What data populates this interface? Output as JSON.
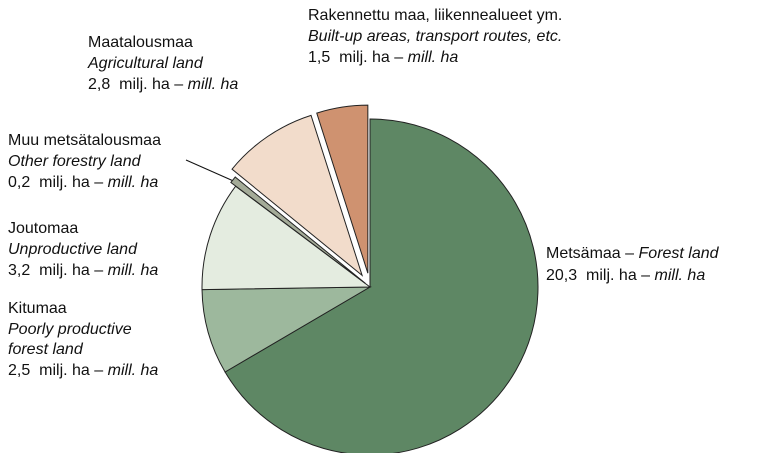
{
  "chart_data": {
    "type": "pie",
    "categories": [
      "Metsämaa",
      "Kitumaa",
      "Joutomaa",
      "Muu metsätalousmaa",
      "Maatalousmaa",
      "Rakennettu maa, liikennealueet ym."
    ],
    "categories_en": [
      "Forest land",
      "Poorly productive forest land",
      "Unproductive land",
      "Other forestry land",
      "Agricultural land",
      "Built-up areas, transport routes, etc."
    ],
    "values": [
      20.3,
      2.5,
      3.2,
      0.2,
      2.8,
      1.5
    ],
    "value_labels": [
      "20,3",
      "2,5",
      "3,2",
      "0,2",
      "2,8",
      "1,5"
    ],
    "unit_fi": "milj. ha",
    "unit_en": "mill. ha",
    "separator": "–",
    "colors": [
      "#5e8764",
      "#9db89d",
      "#e4ece0",
      "#a4ab98",
      "#f2dccb",
      "#cf9270"
    ]
  }
}
